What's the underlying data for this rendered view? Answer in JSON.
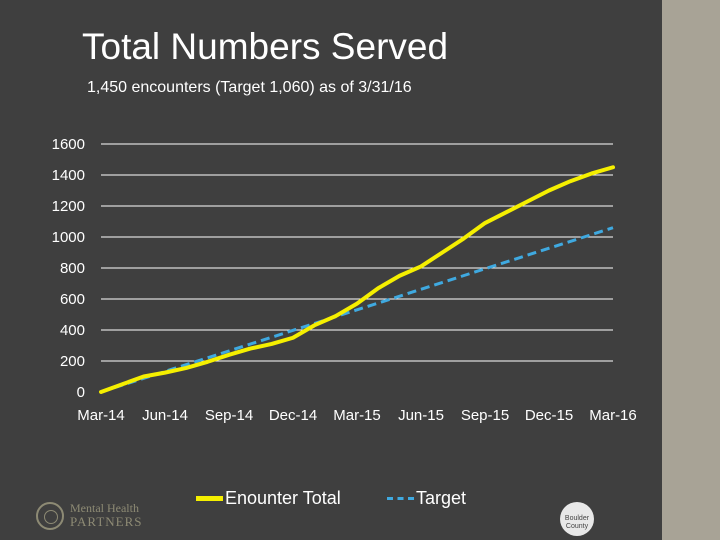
{
  "page": {
    "title": "Total Numbers Served",
    "subtitle": "1,450 encounters (Target 1,060) as of 3/31/16"
  },
  "logos": {
    "left_line1": "Mental Health",
    "left_line2": "PARTNERS",
    "right_text": "Boulder County"
  },
  "colors": {
    "background": "#3f3f3f",
    "sidebar": "#a8a396",
    "encounter_line": "#f5ef00",
    "target_line": "#3fa9e0",
    "gridline": "#ffffff",
    "text": "#ffffff"
  },
  "chart_data": {
    "type": "line",
    "title": "Total Numbers Served",
    "xlabel": "",
    "ylabel": "",
    "ylim": [
      0,
      1600
    ],
    "yticks": [
      0,
      200,
      400,
      600,
      800,
      1000,
      1200,
      1400,
      1600
    ],
    "xlim": [
      0,
      24
    ],
    "xtick_positions": [
      0,
      3,
      6,
      9,
      12,
      15,
      18,
      21,
      24
    ],
    "xtick_labels": [
      "Mar-14",
      "Jun-14",
      "Sep-14",
      "Dec-14",
      "Mar-15",
      "Jun-15",
      "Sep-15",
      "Dec-15",
      "Mar-16"
    ],
    "grid": true,
    "legend_position": "bottom",
    "series": [
      {
        "name": "Enounter Total",
        "style": "solid",
        "x": [
          0,
          1,
          2,
          3,
          4,
          5,
          6,
          7,
          8,
          9,
          10,
          11,
          12,
          13,
          14,
          15,
          16,
          17,
          18,
          19,
          20,
          21,
          22,
          23,
          24
        ],
        "values": [
          0,
          50,
          100,
          125,
          155,
          195,
          240,
          280,
          310,
          350,
          430,
          490,
          570,
          670,
          750,
          810,
          900,
          990,
          1090,
          1160,
          1230,
          1300,
          1360,
          1410,
          1450
        ]
      },
      {
        "name": "Target",
        "style": "dashed",
        "x": [
          0,
          24
        ],
        "values": [
          0,
          1060
        ]
      }
    ]
  }
}
